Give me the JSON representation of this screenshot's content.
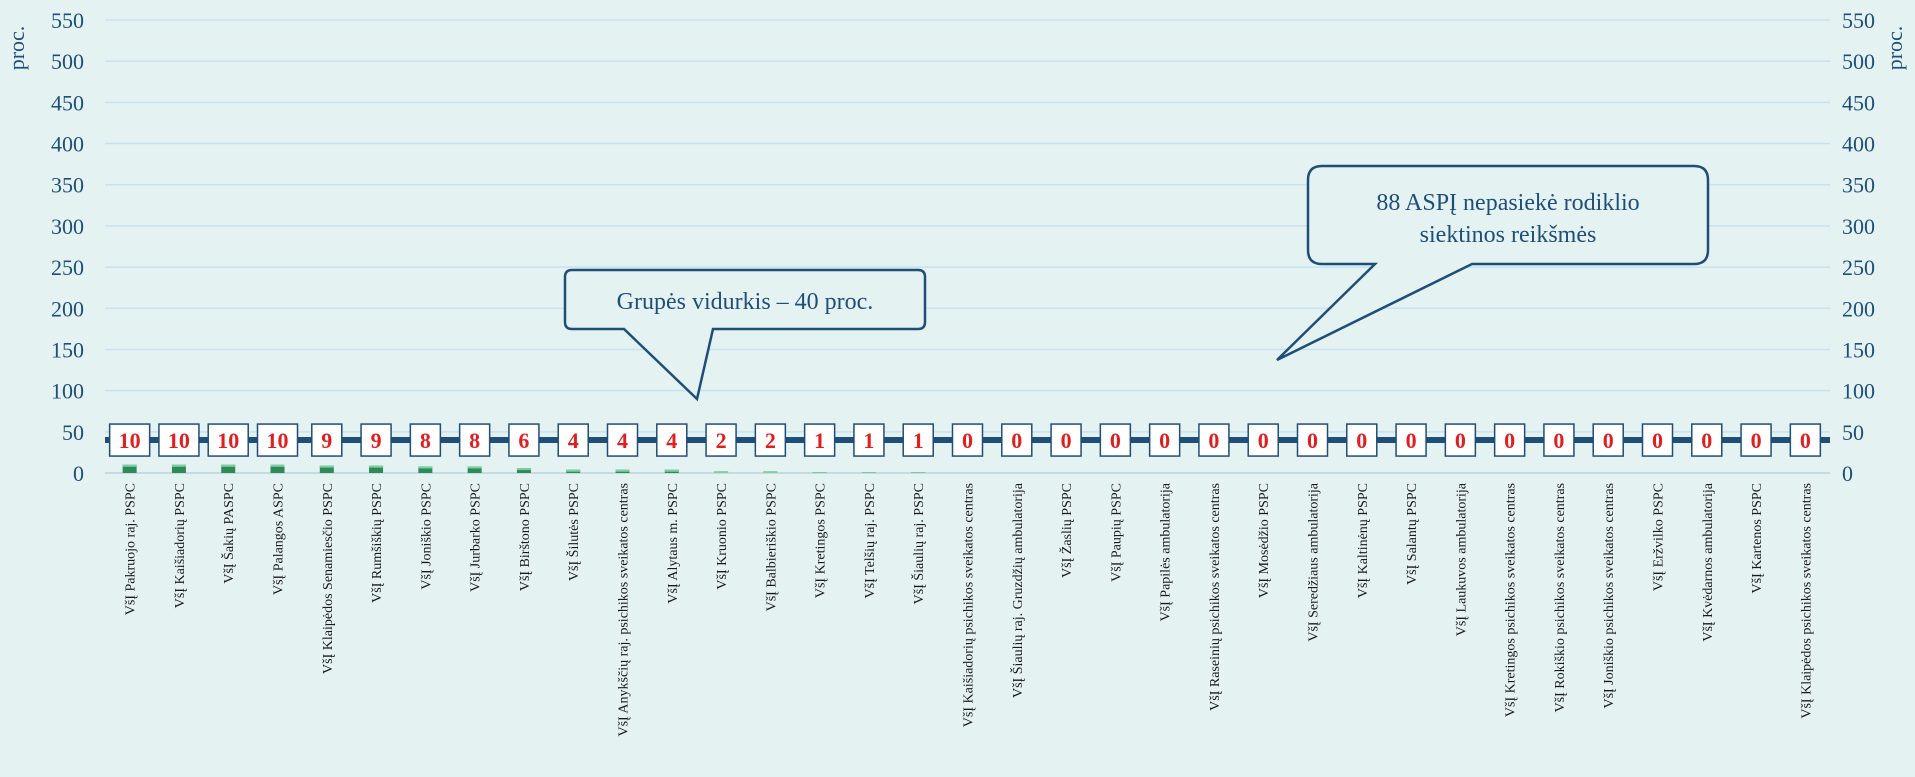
{
  "chart_data": {
    "type": "bar",
    "y_unit_left": "proc.",
    "y_unit_right": "proc.",
    "ylim": [
      0,
      550
    ],
    "yticks": [
      0,
      50,
      100,
      150,
      200,
      250,
      300,
      350,
      400,
      450,
      500,
      550
    ],
    "grid": true,
    "categories": [
      "VšĮ Pakruojo raj. PSPC",
      "VšĮ Kaišiadorių PSPC",
      "VšĮ Šakių PASPC",
      "VšĮ Palangos ASPC",
      "VšĮ Klaipėdos Senamiesčio PSPC",
      "VšĮ Rumšiškių PSPC",
      "VšĮ Joniškio PSPC",
      "VšĮ Jurbarko PSPC",
      "VšĮ Birštono PSPC",
      "VšĮ Šilutės PSPC",
      "VšĮ Anykščių raj. psichikos sveikatos centras",
      "VšĮ Alytaus m. PSPC",
      "VšĮ Kruonio PSPC",
      "VšĮ Balbieriškio PSPC",
      "VšĮ Kretingos PSPC",
      "VšĮ Telšių raj. PSPC",
      "VšĮ Šiaulių raj. PSPC",
      "VšĮ Kaišiadorių psichikos sveikatos centras",
      "VšĮ Šiaulių raj. Gruzdžių ambulatorija",
      "VšĮ Žaslių PSPC",
      "VšĮ Paupių PSPC",
      "VšĮ Papilės ambulatorija",
      "VšĮ Raseinių psichikos sveikatos centras",
      "VšĮ Mosėdžio PSPC",
      "VšĮ Seredžiaus ambulatorija",
      "VšĮ Kaltinėnų PSPC",
      "VšĮ Salantų PSPC",
      "VšĮ Laukuvos ambulatorija",
      "VšĮ Kretingos psichikos sveikatos centras",
      "VšĮ Rokiškio psichikos sveikatos centras",
      "VšĮ Joniškio psichikos sveikatos centras",
      "VšĮ Eržvilko PSPC",
      "VšĮ Kvėdarnos ambulatorija",
      "VšĮ Kartenos PSPC",
      "VšĮ Klaipėdos psichikos sveikatos centras"
    ],
    "values": [
      10,
      10,
      10,
      10,
      9,
      9,
      8,
      8,
      6,
      4,
      4,
      4,
      2,
      2,
      1,
      1,
      1,
      0,
      0,
      0,
      0,
      0,
      0,
      0,
      0,
      0,
      0,
      0,
      0,
      0,
      0,
      0,
      0,
      0,
      0
    ],
    "average_line": {
      "value": 40,
      "color": "#1f4e79"
    },
    "colors": {
      "bar": "#2e8b57",
      "label": "#e02020",
      "axis_text": "#1f4e79",
      "grid": "#c6e3f0",
      "background": "#e4f2f2"
    },
    "annotations": [
      {
        "id": "avg",
        "text_lines": [
          "Grupės vidurkis – 40 proc."
        ]
      },
      {
        "id": "missed",
        "text_lines": [
          "88 ASPĮ nepasiekė rodiklio",
          "siektinos reikšmės"
        ]
      }
    ]
  }
}
